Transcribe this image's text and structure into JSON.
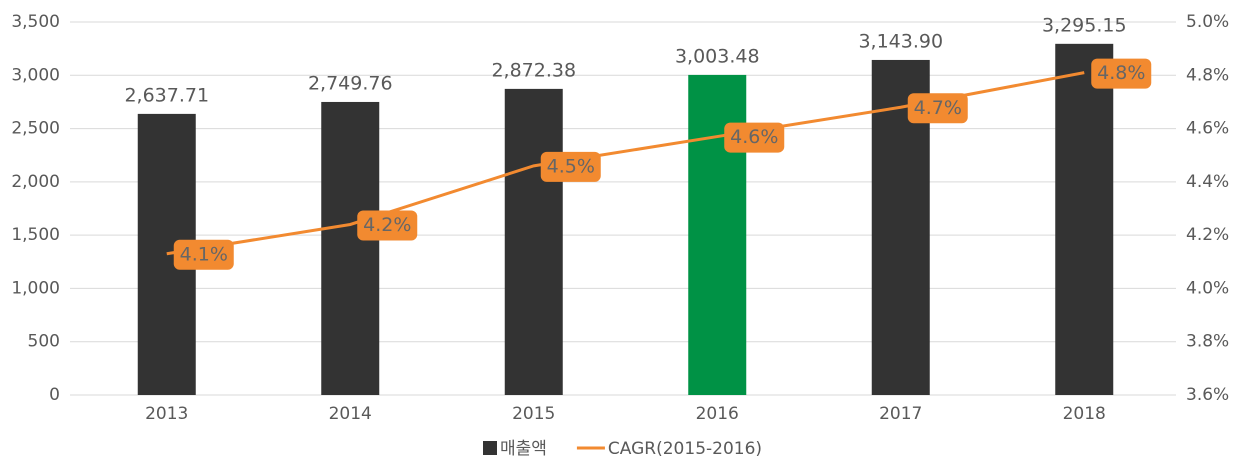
{
  "chart_data": {
    "type": "bar-line",
    "categories": [
      "2013",
      "2014",
      "2015",
      "2016",
      "2017",
      "2018"
    ],
    "series": [
      {
        "name": "매출액",
        "type": "bar",
        "color": "#333333",
        "colors": [
          "#333333",
          "#333333",
          "#333333",
          "#009245",
          "#333333",
          "#333333"
        ],
        "values": [
          2637.71,
          2749.76,
          2872.38,
          3003.48,
          3143.9,
          3295.15
        ],
        "value_labels": [
          "2,637.71",
          "2,749.76",
          "2,872.38",
          "3,003.48",
          "3,143.90",
          "3,295.15"
        ]
      },
      {
        "name": "CAGR(2015-2016)",
        "type": "line",
        "axis": "y2",
        "color": "#f28a30",
        "values": [
          4.13,
          4.24,
          4.46,
          4.57,
          4.68,
          4.81
        ],
        "value_labels": [
          "4.1%",
          "4.2%",
          "4.5%",
          "4.6%",
          "4.7%",
          "4.8%"
        ]
      }
    ],
    "ylim": [
      0,
      3500
    ],
    "yticks": [
      0,
      500,
      {
        "value": 1000,
        "label": "1,000"
      },
      {
        "value": 1500,
        "label": "1,500"
      },
      {
        "value": 2000,
        "label": "2,000"
      },
      {
        "value": 2500,
        "label": "2,500"
      },
      {
        "value": 3000,
        "label": "3,000"
      },
      {
        "value": 3500,
        "label": "3,500"
      }
    ],
    "y2lim": [
      3.6,
      5.0
    ],
    "y2ticks": [
      {
        "value": 3.6,
        "label": "3.6%"
      },
      {
        "value": 3.8,
        "label": "3.8%"
      },
      {
        "value": 4.0,
        "label": "4.0%"
      },
      {
        "value": 4.2,
        "label": "4.2%"
      },
      {
        "value": 4.4,
        "label": "4.4%"
      },
      {
        "value": 4.6,
        "label": "4.6%"
      },
      {
        "value": 4.8,
        "label": "4.8%"
      },
      {
        "value": 5.0,
        "label": "5.0%"
      }
    ],
    "grid": true,
    "legend": "bottom"
  }
}
